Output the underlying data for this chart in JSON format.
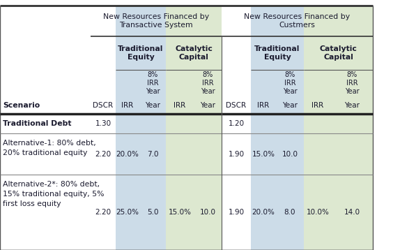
{
  "bg_color": "#FFFFFF",
  "light_blue": "#CCDCE8",
  "light_green": "#DDE8D0",
  "header1_trans": "New Resources Financed by\nTransactive System",
  "header1_cust": "New Resources Financed by\nCustmers",
  "col_boundaries": [
    0,
    130,
    166,
    200,
    238,
    278,
    318,
    360,
    396,
    436,
    476,
    535
  ],
  "header_row_boundaries": [
    8,
    52,
    100,
    138,
    163
  ],
  "data_row_boundaries": [
    163,
    191,
    250,
    358
  ],
  "rows": [
    {
      "scenario_lines": [
        "Traditional Debt"
      ],
      "bold": true,
      "vals": [
        "1.30",
        "",
        "",
        "",
        "",
        "1.20",
        "",
        "",
        "",
        ""
      ]
    },
    {
      "scenario_lines": [
        "Alternative-1: 80% debt,",
        "20% traditional equity"
      ],
      "bold": false,
      "vals": [
        "2.20",
        "20.0%",
        "7.0",
        "",
        "",
        "1.90",
        "15.0%",
        "10.0",
        "",
        ""
      ]
    },
    {
      "scenario_lines": [
        "Alternative-2*: 80% debt,",
        "15% traditional equity, 5%",
        "first loss equity"
      ],
      "bold": false,
      "vals": [
        "2.20",
        "25.0%",
        "5.0",
        "15.0%",
        "10.0",
        "1.90",
        "20.0%",
        "8.0",
        "10.0%",
        "14.0"
      ]
    }
  ]
}
